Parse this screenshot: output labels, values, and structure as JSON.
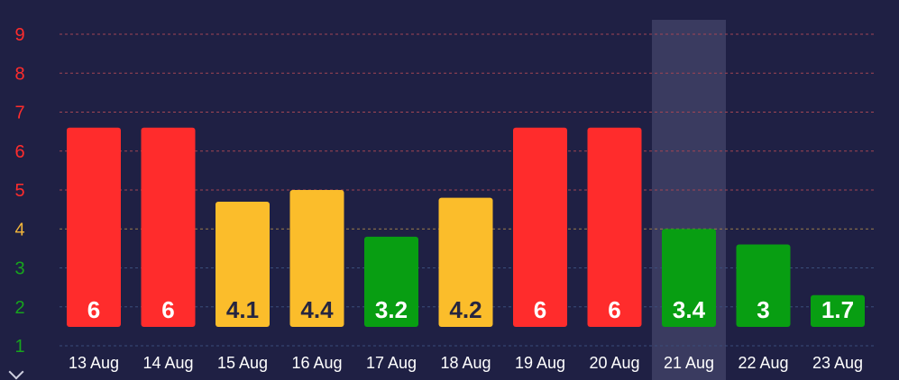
{
  "chart_data": {
    "type": "bar",
    "categories": [
      "13 Aug",
      "14 Aug",
      "15 Aug",
      "16 Aug",
      "17 Aug",
      "18 Aug",
      "19 Aug",
      "20 Aug",
      "21 Aug",
      "22 Aug",
      "23 Aug"
    ],
    "values": [
      6,
      6,
      4.1,
      4.4,
      3.2,
      4.2,
      6,
      6,
      3.4,
      3,
      1.7
    ],
    "value_labels": [
      "6",
      "6",
      "4.1",
      "4.4",
      "3.2",
      "4.2",
      "6",
      "6",
      "3.4",
      "3",
      "1.7"
    ],
    "bar_colors": [
      "#ff2c2c",
      "#ff2c2c",
      "#fbbd2b",
      "#fbbd2b",
      "#089e12",
      "#fbbd2b",
      "#ff2c2c",
      "#ff2c2c",
      "#089e12",
      "#089e12",
      "#089e12"
    ],
    "label_colors": [
      "#ffffff",
      "#ffffff",
      "#262640",
      "#262640",
      "#ffffff",
      "#262640",
      "#ffffff",
      "#ffffff",
      "#ffffff",
      "#ffffff",
      "#ffffff"
    ],
    "ylim": [
      1,
      9
    ],
    "yticks": [
      {
        "value": 1,
        "label": "1",
        "color": "#17a51d"
      },
      {
        "value": 2,
        "label": "2",
        "color": "#17a51d"
      },
      {
        "value": 3,
        "label": "3",
        "color": "#17a51d"
      },
      {
        "value": 4,
        "label": "4",
        "color": "#f3b63a"
      },
      {
        "value": 5,
        "label": "5",
        "color": "#ff2c2c"
      },
      {
        "value": 6,
        "label": "6",
        "color": "#ff2c2c"
      },
      {
        "value": 7,
        "label": "7",
        "color": "#ff2c2c"
      },
      {
        "value": 8,
        "label": "8",
        "color": "#ff2c2c"
      },
      {
        "value": 9,
        "label": "9",
        "color": "#ff2c2c"
      }
    ],
    "grid": true,
    "highlighted_category": "21 Aug",
    "title": "",
    "xlabel": "",
    "ylabel": "",
    "colors": {
      "background": "#1f2044",
      "gridline": "#a14553",
      "highlight_band": "#3a3b60",
      "tick_text": "#ffffff"
    }
  }
}
